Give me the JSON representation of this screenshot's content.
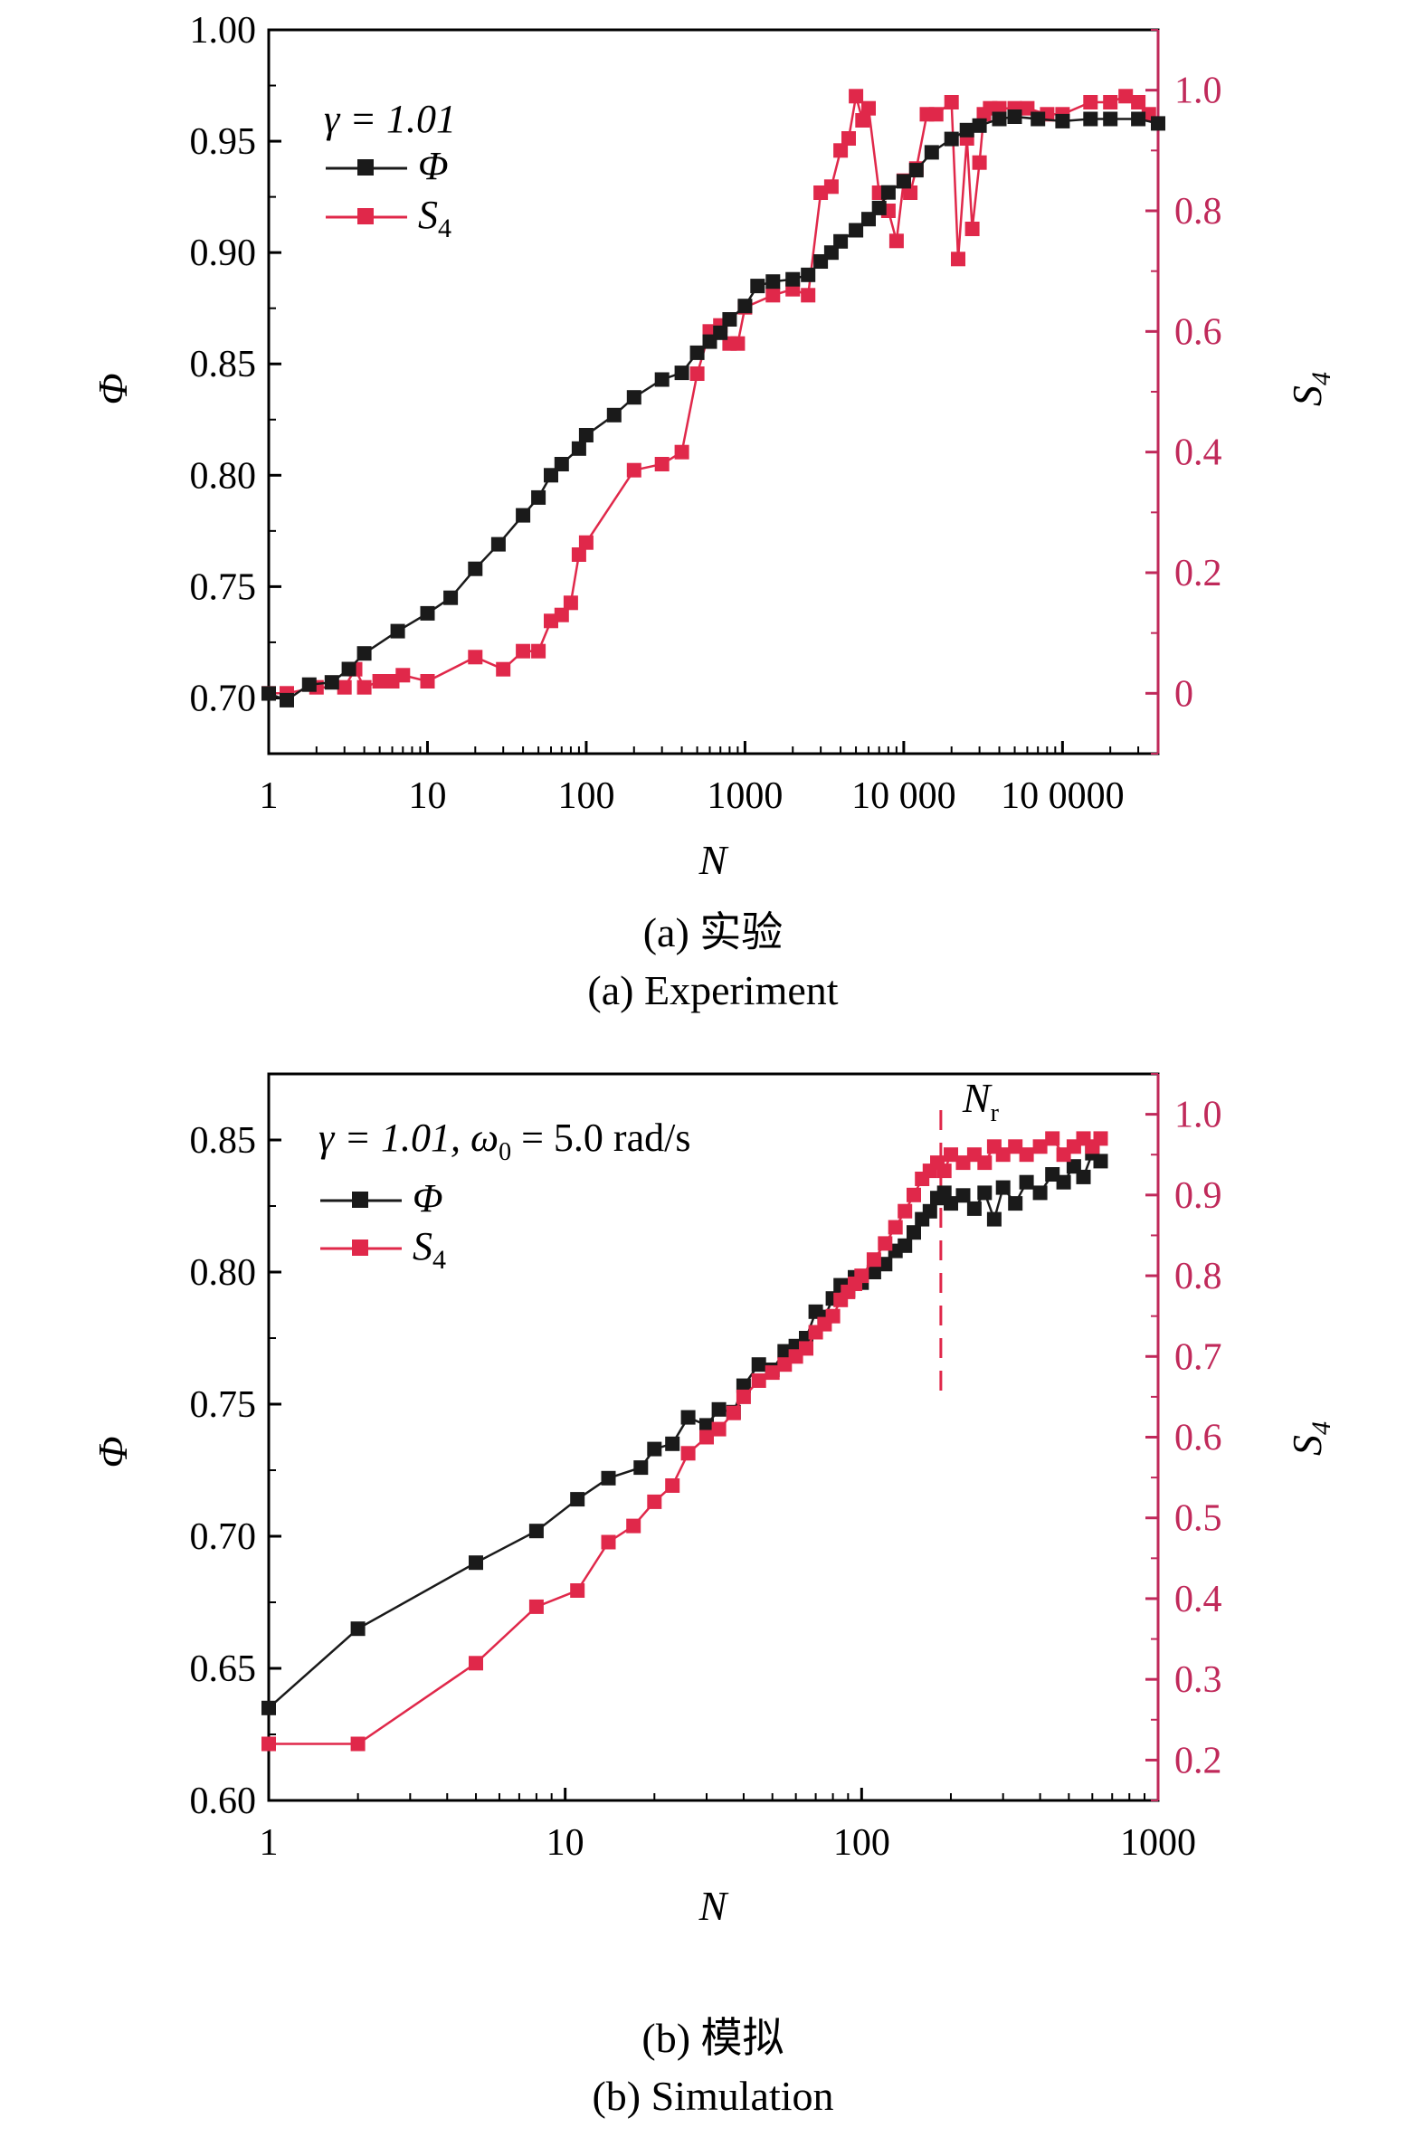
{
  "captions": {
    "a_cn": "(a) 实验",
    "a_en": "(a) Experiment",
    "b_cn": "(b) 模拟",
    "b_en": "(b) Simulation"
  },
  "colors": {
    "phi": "#1a1a1a",
    "s4": "#e0284a",
    "right_axis": "#c0295a",
    "axis": "#000000"
  },
  "chart_data": [
    {
      "type": "line",
      "id": "experiment",
      "xlabel": "N",
      "ylabel_left": "Φ",
      "ylabel_right": "S4",
      "xscale": "log",
      "xlim": [
        1,
        400000
      ],
      "ylim_left": [
        0.675,
        1.0
      ],
      "ylim_right": [
        -0.1,
        1.1
      ],
      "x_ticks": [
        1,
        10,
        100,
        1000,
        10000,
        100000
      ],
      "x_tick_labels": [
        "1",
        "10",
        "100",
        "1000",
        "10 000",
        "10 0000"
      ],
      "yl_ticks": [
        0.7,
        0.75,
        0.8,
        0.85,
        0.9,
        0.95,
        1.0
      ],
      "yl_tick_labels": [
        "0.70",
        "0.75",
        "0.80",
        "0.85",
        "0.90",
        "0.95",
        "1.00"
      ],
      "yr_ticks": [
        0,
        0.2,
        0.4,
        0.6,
        0.8,
        1.0
      ],
      "yr_tick_labels": [
        "0",
        "0.2",
        "0.4",
        "0.6",
        "0.8",
        "1.0"
      ],
      "legend": {
        "position": "top-left",
        "annotation": "γ = 1.01"
      },
      "series": [
        {
          "name": "Φ",
          "axis": "left",
          "x": [
            1,
            1.3,
            1.8,
            2.5,
            3.2,
            4,
            6.5,
            10,
            14,
            20,
            28,
            40,
            50,
            60,
            70,
            90,
            100,
            150,
            200,
            300,
            400,
            500,
            600,
            700,
            800,
            1000,
            1200,
            1500,
            2000,
            2500,
            3000,
            3500,
            4000,
            5000,
            6000,
            7000,
            8000,
            10000,
            12000,
            15000,
            20000,
            25000,
            30000,
            40000,
            50000,
            70000,
            100000,
            150000,
            200000,
            300000,
            400000
          ],
          "values": [
            0.702,
            0.699,
            0.706,
            0.707,
            0.713,
            0.72,
            0.73,
            0.738,
            0.745,
            0.758,
            0.769,
            0.782,
            0.79,
            0.8,
            0.805,
            0.812,
            0.818,
            0.827,
            0.835,
            0.843,
            0.846,
            0.855,
            0.86,
            0.864,
            0.87,
            0.876,
            0.885,
            0.887,
            0.888,
            0.89,
            0.896,
            0.9,
            0.905,
            0.91,
            0.915,
            0.92,
            0.927,
            0.932,
            0.937,
            0.945,
            0.951,
            0.955,
            0.957,
            0.96,
            0.961,
            0.96,
            0.959,
            0.96,
            0.96,
            0.96,
            0.958
          ]
        },
        {
          "name": "S4",
          "axis": "right",
          "x": [
            1,
            1.3,
            2,
            3,
            3.5,
            4,
            5,
            6,
            7,
            10,
            20,
            30,
            40,
            50,
            60,
            70,
            80,
            90,
            100,
            200,
            300,
            400,
            500,
            600,
            700,
            800,
            900,
            1000,
            1500,
            2000,
            2500,
            3000,
            3500,
            4000,
            4500,
            5000,
            5500,
            6000,
            7000,
            8000,
            9000,
            10000,
            11000,
            12000,
            14000,
            16000,
            20000,
            22000,
            25000,
            27000,
            30000,
            32000,
            35000,
            40000,
            50000,
            60000,
            80000,
            100000,
            150000,
            200000,
            250000,
            300000,
            350000
          ],
          "values": [
            0.0,
            0.0,
            0.01,
            0.01,
            0.04,
            0.01,
            0.02,
            0.02,
            0.03,
            0.02,
            0.06,
            0.04,
            0.07,
            0.07,
            0.12,
            0.13,
            0.15,
            0.23,
            0.25,
            0.37,
            0.38,
            0.4,
            0.53,
            0.6,
            0.61,
            0.58,
            0.58,
            0.64,
            0.66,
            0.67,
            0.66,
            0.83,
            0.84,
            0.9,
            0.92,
            0.99,
            0.95,
            0.97,
            0.83,
            0.8,
            0.75,
            0.85,
            0.83,
            0.87,
            0.96,
            0.96,
            0.98,
            0.72,
            0.92,
            0.77,
            0.88,
            0.96,
            0.97,
            0.97,
            0.97,
            0.97,
            0.96,
            0.96,
            0.98,
            0.98,
            0.99,
            0.98,
            0.96
          ]
        }
      ]
    },
    {
      "type": "line",
      "id": "simulation",
      "xlabel": "N",
      "ylabel_left": "Φ",
      "ylabel_right": "S4",
      "xscale": "log",
      "xlim": [
        1,
        1000
      ],
      "ylim_left": [
        0.6,
        0.875
      ],
      "ylim_right": [
        0.15,
        1.05
      ],
      "x_ticks": [
        1,
        10,
        100,
        1000
      ],
      "x_tick_labels": [
        "1",
        "10",
        "100",
        "1000"
      ],
      "yl_ticks": [
        0.6,
        0.65,
        0.7,
        0.75,
        0.8,
        0.85
      ],
      "yl_tick_labels": [
        "0.60",
        "0.65",
        "0.70",
        "0.75",
        "0.80",
        "0.85"
      ],
      "yr_ticks": [
        0.2,
        0.3,
        0.4,
        0.5,
        0.6,
        0.7,
        0.8,
        0.9,
        1.0
      ],
      "yr_tick_labels": [
        "0.2",
        "0.3",
        "0.4",
        "0.5",
        "0.6",
        "0.7",
        "0.8",
        "0.9",
        "1.0"
      ],
      "legend": {
        "position": "top-left",
        "annotation": "γ = 1.01, ω0 = 5.0 rad/s"
      },
      "reference_line": {
        "label": "Nr",
        "x": 185
      },
      "series": [
        {
          "name": "Φ",
          "axis": "left",
          "x": [
            1,
            2,
            5,
            8,
            11,
            14,
            18,
            20,
            23,
            26,
            30,
            33,
            37,
            40,
            45,
            50,
            55,
            60,
            65,
            70,
            75,
            80,
            85,
            90,
            95,
            100,
            110,
            120,
            130,
            140,
            150,
            160,
            170,
            180,
            190,
            200,
            220,
            240,
            260,
            280,
            300,
            330,
            360,
            400,
            440,
            480,
            520,
            560,
            600,
            640
          ],
          "values": [
            0.635,
            0.665,
            0.69,
            0.702,
            0.714,
            0.722,
            0.726,
            0.733,
            0.735,
            0.745,
            0.742,
            0.748,
            0.747,
            0.757,
            0.765,
            0.763,
            0.77,
            0.772,
            0.775,
            0.785,
            0.783,
            0.79,
            0.795,
            0.793,
            0.798,
            0.796,
            0.8,
            0.803,
            0.808,
            0.81,
            0.815,
            0.82,
            0.823,
            0.828,
            0.83,
            0.826,
            0.829,
            0.824,
            0.83,
            0.82,
            0.832,
            0.826,
            0.834,
            0.83,
            0.837,
            0.834,
            0.84,
            0.836,
            0.845,
            0.842
          ]
        },
        {
          "name": "S4",
          "axis": "right",
          "x": [
            1,
            2,
            5,
            8,
            11,
            14,
            17,
            20,
            23,
            26,
            30,
            33,
            37,
            40,
            45,
            50,
            55,
            60,
            65,
            70,
            75,
            80,
            85,
            90,
            95,
            100,
            110,
            120,
            130,
            140,
            150,
            160,
            170,
            180,
            190,
            200,
            220,
            240,
            260,
            280,
            300,
            330,
            360,
            400,
            440,
            480,
            520,
            560,
            600,
            640
          ],
          "values": [
            0.22,
            0.22,
            0.32,
            0.39,
            0.41,
            0.47,
            0.49,
            0.52,
            0.54,
            0.58,
            0.6,
            0.61,
            0.63,
            0.65,
            0.67,
            0.68,
            0.69,
            0.7,
            0.71,
            0.73,
            0.74,
            0.75,
            0.77,
            0.78,
            0.79,
            0.8,
            0.82,
            0.84,
            0.86,
            0.88,
            0.9,
            0.92,
            0.93,
            0.94,
            0.93,
            0.95,
            0.94,
            0.95,
            0.94,
            0.96,
            0.95,
            0.96,
            0.95,
            0.96,
            0.97,
            0.95,
            0.96,
            0.97,
            0.96,
            0.97
          ]
        }
      ]
    }
  ]
}
